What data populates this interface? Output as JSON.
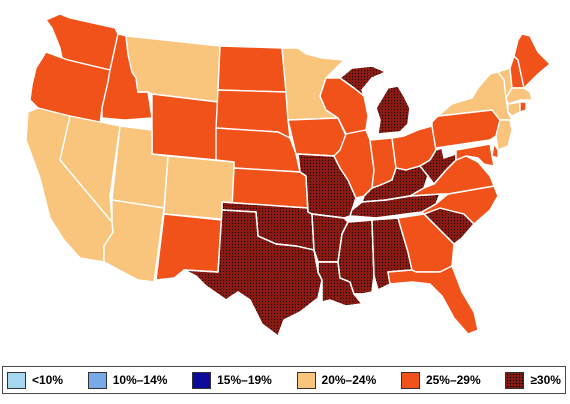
{
  "legend": {
    "items": [
      {
        "label": "<10%",
        "color": "#a6d6f0",
        "pattern": "solid"
      },
      {
        "label": "10%–14%",
        "color": "#78a9e8",
        "pattern": "solid"
      },
      {
        "label": "15%–19%",
        "color": "#0d0c9a",
        "pattern": "solid"
      },
      {
        "label": "20%–24%",
        "color": "#f9c47c",
        "pattern": "solid"
      },
      {
        "label": "25%–29%",
        "color": "#f0521a",
        "pattern": "solid"
      },
      {
        "label": "≥30%",
        "color": "#8a1a12",
        "pattern": "dotted"
      }
    ]
  },
  "map": {
    "states": [
      {
        "name": "WA",
        "category": "25%–29%"
      },
      {
        "name": "OR",
        "category": "25%–29%"
      },
      {
        "name": "CA",
        "category": "20%–24%"
      },
      {
        "name": "NV",
        "category": "20%–24%"
      },
      {
        "name": "ID",
        "category": "25%–29%"
      },
      {
        "name": "MT",
        "category": "20%–24%"
      },
      {
        "name": "WY",
        "category": "25%–29%"
      },
      {
        "name": "UT",
        "category": "20%–24%"
      },
      {
        "name": "AZ",
        "category": "20%–24%"
      },
      {
        "name": "CO",
        "category": "20%–24%"
      },
      {
        "name": "NM",
        "category": "25%–29%"
      },
      {
        "name": "ND",
        "category": "25%–29%"
      },
      {
        "name": "SD",
        "category": "25%–29%"
      },
      {
        "name": "NE",
        "category": "25%–29%"
      },
      {
        "name": "KS",
        "category": "25%–29%"
      },
      {
        "name": "OK",
        "category": "≥30%"
      },
      {
        "name": "TX",
        "category": "≥30%"
      },
      {
        "name": "MN",
        "category": "20%–24%"
      },
      {
        "name": "IA",
        "category": "25%–29%"
      },
      {
        "name": "MO",
        "category": "≥30%"
      },
      {
        "name": "AR",
        "category": "≥30%"
      },
      {
        "name": "LA",
        "category": "≥30%"
      },
      {
        "name": "WI",
        "category": "25%–29%"
      },
      {
        "name": "IL",
        "category": "25%–29%"
      },
      {
        "name": "MI",
        "category": "≥30%"
      },
      {
        "name": "IN",
        "category": "25%–29%"
      },
      {
        "name": "OH",
        "category": "25%–29%"
      },
      {
        "name": "KY",
        "category": "≥30%"
      },
      {
        "name": "TN",
        "category": "≥30%"
      },
      {
        "name": "MS",
        "category": "≥30%"
      },
      {
        "name": "AL",
        "category": "≥30%"
      },
      {
        "name": "GA",
        "category": "25%–29%"
      },
      {
        "name": "FL",
        "category": "25%–29%"
      },
      {
        "name": "SC",
        "category": "≥30%"
      },
      {
        "name": "NC",
        "category": "25%–29%"
      },
      {
        "name": "VA",
        "category": "25%–29%"
      },
      {
        "name": "WV",
        "category": "≥30%"
      },
      {
        "name": "PA",
        "category": "25%–29%"
      },
      {
        "name": "NY",
        "category": "20%–24%"
      },
      {
        "name": "VT",
        "category": "20%–24%"
      },
      {
        "name": "NH",
        "category": "25%–29%"
      },
      {
        "name": "ME",
        "category": "25%–29%"
      },
      {
        "name": "MA",
        "category": "20%–24%"
      },
      {
        "name": "CT",
        "category": "20%–24%"
      },
      {
        "name": "RI",
        "category": "25%–29%"
      },
      {
        "name": "NJ",
        "category": "20%–24%"
      },
      {
        "name": "DE",
        "category": "25%–29%"
      },
      {
        "name": "MD",
        "category": "25%–29%"
      }
    ]
  }
}
